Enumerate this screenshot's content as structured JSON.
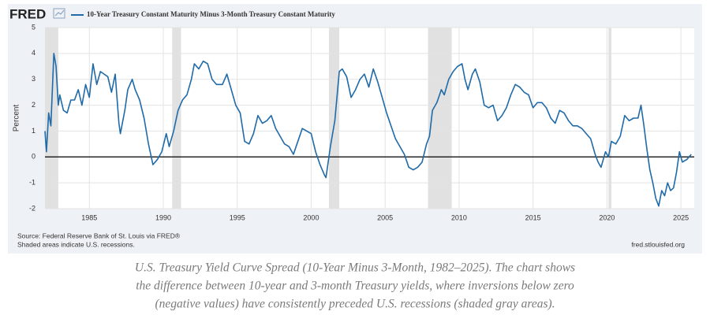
{
  "logo": "FRED",
  "chart_data": {
    "type": "line",
    "y_label": "Percent",
    "source": "Source: Federal Reserve Bank of St. Louis via FRED®",
    "note": "Shaded areas indicate U.S. recessions.",
    "url": "fred.stlouisfed.org",
    "xlim": [
      1982,
      2025.9
    ],
    "xticks": [
      1985,
      1990,
      1995,
      2000,
      2005,
      2010,
      2015,
      2020,
      2025
    ],
    "ylim": [
      -2,
      5
    ],
    "yticks": [
      -2,
      -1,
      0,
      1,
      2,
      3,
      4,
      5
    ],
    "grid": true,
    "zero_line": true,
    "recession_color": "#e1e1e1",
    "recessions": [
      [
        1982,
        1982.9
      ],
      [
        1990.6,
        1991.2
      ],
      [
        2001.2,
        2001.9
      ],
      [
        2007.9,
        2009.5
      ],
      [
        2020.1,
        2020.3
      ]
    ],
    "x": [
      1982.0,
      1982.1,
      1982.25,
      1982.4,
      1982.6,
      1982.75,
      1982.9,
      1983.0,
      1983.25,
      1983.5,
      1983.75,
      1984.0,
      1984.25,
      1984.5,
      1984.75,
      1985.0,
      1985.25,
      1985.5,
      1985.75,
      1986.0,
      1986.25,
      1986.5,
      1986.75,
      1987.0,
      1987.1,
      1987.4,
      1987.6,
      1987.9,
      1988.1,
      1988.4,
      1988.7,
      1989.0,
      1989.3,
      1989.6,
      1989.9,
      1990.2,
      1990.4,
      1990.7,
      1991.0,
      1991.3,
      1991.6,
      1991.9,
      1992.1,
      1992.4,
      1992.7,
      1993.0,
      1993.3,
      1993.6,
      1994.0,
      1994.3,
      1994.6,
      1994.9,
      1995.2,
      1995.5,
      1995.8,
      1996.1,
      1996.4,
      1996.7,
      1997.0,
      1997.3,
      1997.6,
      1997.9,
      1998.2,
      1998.5,
      1998.8,
      1999.1,
      1999.4,
      1999.7,
      2000.0,
      2000.3,
      2000.6,
      2000.9,
      2001.0,
      2001.3,
      2001.6,
      2001.9,
      2002.1,
      2002.4,
      2002.7,
      2003.0,
      2003.3,
      2003.6,
      2003.9,
      2004.2,
      2004.5,
      2004.8,
      2005.1,
      2005.4,
      2005.7,
      2006.0,
      2006.3,
      2006.6,
      2006.9,
      2007.2,
      2007.5,
      2007.8,
      2008.0,
      2008.2,
      2008.5,
      2008.8,
      2009.0,
      2009.3,
      2009.6,
      2009.9,
      2010.2,
      2010.4,
      2010.6,
      2010.9,
      2011.1,
      2011.4,
      2011.7,
      2012.0,
      2012.3,
      2012.6,
      2012.9,
      2013.2,
      2013.5,
      2013.8,
      2014.1,
      2014.4,
      2014.7,
      2015.0,
      2015.3,
      2015.6,
      2015.9,
      2016.2,
      2016.5,
      2016.8,
      2017.1,
      2017.4,
      2017.7,
      2018.0,
      2018.3,
      2018.6,
      2018.9,
      2019.2,
      2019.4,
      2019.6,
      2019.9,
      2020.1,
      2020.3,
      2020.6,
      2020.9,
      2021.2,
      2021.5,
      2021.8,
      2022.1,
      2022.3,
      2022.5,
      2022.7,
      2022.9,
      2023.1,
      2023.3,
      2023.5,
      2023.7,
      2023.9,
      2024.1,
      2024.3,
      2024.5,
      2024.7,
      2024.9,
      2025.1,
      2025.4,
      2025.7
    ],
    "series": [
      {
        "name": "10-Year Treasury Constant Maturity Minus 3-Month Treasury Constant Maturity",
        "color": "#1f6aa8",
        "values": [
          1.0,
          0.2,
          1.7,
          1.2,
          4.0,
          3.5,
          2.0,
          2.4,
          1.8,
          1.7,
          2.2,
          2.2,
          2.6,
          2.0,
          2.8,
          2.3,
          3.6,
          2.8,
          3.3,
          3.2,
          3.1,
          2.5,
          3.2,
          1.3,
          0.9,
          1.8,
          2.6,
          3.0,
          2.6,
          2.2,
          1.5,
          0.5,
          -0.3,
          -0.1,
          0.2,
          0.9,
          0.4,
          1.0,
          1.8,
          2.2,
          2.4,
          3.0,
          3.6,
          3.4,
          3.7,
          3.6,
          3.0,
          2.8,
          2.8,
          3.2,
          2.6,
          2.0,
          1.7,
          0.6,
          0.5,
          0.9,
          1.6,
          1.3,
          1.4,
          1.6,
          1.1,
          0.8,
          0.5,
          0.4,
          0.1,
          0.6,
          1.1,
          1.0,
          0.9,
          0.2,
          -0.3,
          -0.7,
          -0.8,
          0.4,
          1.4,
          3.3,
          3.4,
          3.1,
          2.3,
          2.6,
          3.0,
          3.2,
          2.7,
          3.4,
          2.9,
          2.3,
          1.7,
          1.2,
          0.7,
          0.4,
          0.1,
          -0.4,
          -0.5,
          -0.4,
          -0.2,
          0.5,
          0.8,
          1.8,
          2.1,
          2.6,
          2.4,
          3.0,
          3.3,
          3.5,
          3.6,
          3.0,
          2.6,
          3.2,
          3.4,
          2.9,
          2.0,
          1.9,
          2.0,
          1.4,
          1.6,
          1.9,
          2.4,
          2.8,
          2.7,
          2.5,
          2.4,
          1.9,
          2.1,
          2.1,
          1.9,
          1.5,
          1.3,
          1.8,
          1.7,
          1.4,
          1.2,
          1.2,
          1.1,
          0.9,
          0.7,
          0.1,
          -0.2,
          -0.4,
          0.2,
          0.0,
          0.6,
          0.5,
          0.8,
          1.6,
          1.4,
          1.5,
          1.5,
          2.0,
          1.2,
          0.3,
          -0.5,
          -1.0,
          -1.6,
          -1.9,
          -1.3,
          -1.5,
          -1.0,
          -1.3,
          -1.2,
          -0.6,
          0.2,
          -0.2,
          -0.1,
          0.1
        ]
      }
    ]
  },
  "caption": [
    "U.S. Treasury Yield Curve Spread (10-Year Minus 3-Month, 1982–2025). The chart shows",
    "the difference between 10-year and 3-month Treasury yields, where inversions below zero",
    "(negative values) have consistently preceded U.S. recessions (shaded gray areas)."
  ]
}
